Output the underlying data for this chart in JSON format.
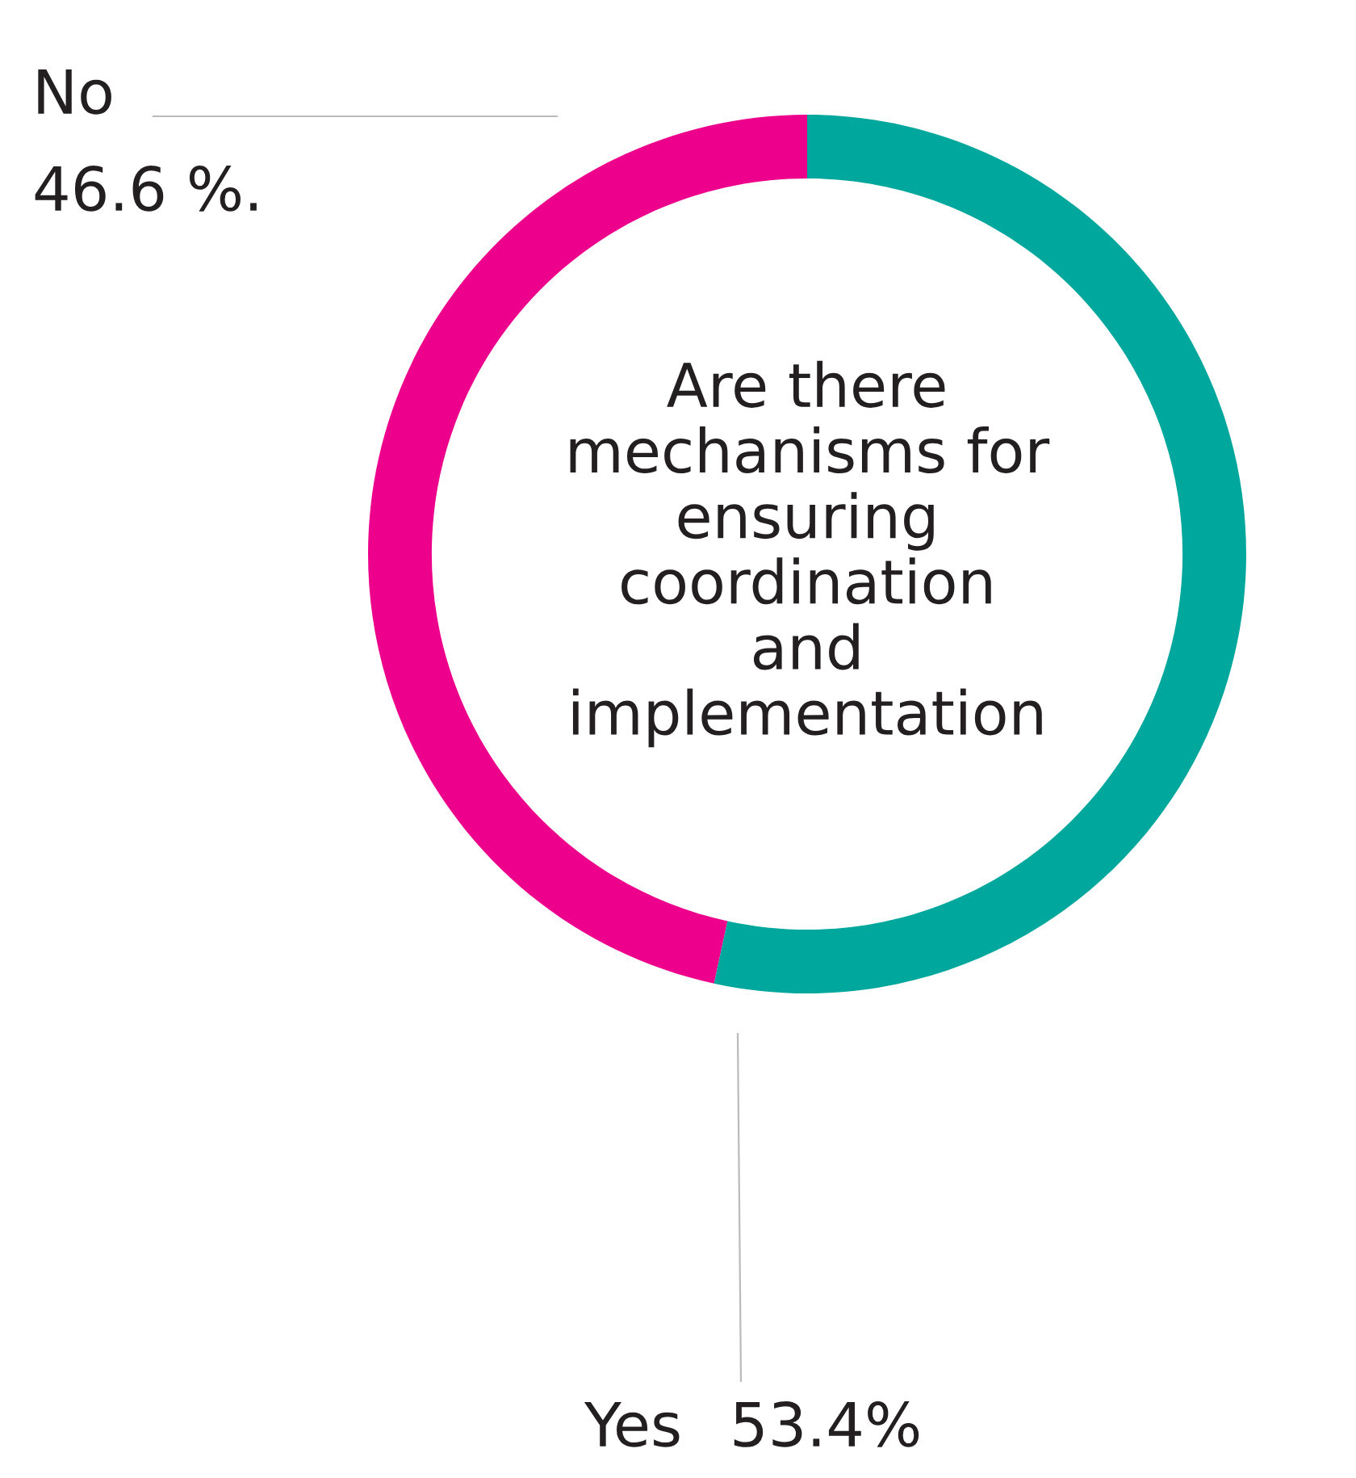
{
  "chart_data": {
    "type": "donut",
    "title": "Are there\nmechanisms for\nensuring\ncoordination\nand\nimplementation",
    "categories": [
      "No",
      "Yes"
    ],
    "values": [
      46.6,
      53.4
    ],
    "colors": [
      "#ec008c",
      "#00a79d"
    ],
    "value_labels": [
      "46.6 %.",
      "53.4%"
    ]
  }
}
